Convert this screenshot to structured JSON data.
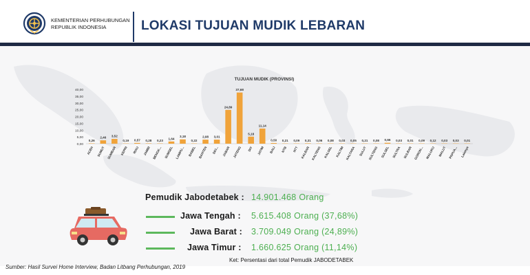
{
  "header": {
    "org_line1": "KEMENTERIAN PERHUBUNGAN",
    "org_line2": "REPUBLIK INDONESIA",
    "title": "LOKASI TUJUAN MUDIK LEBARAN"
  },
  "colors": {
    "bar": "#f0a33a",
    "title": "#1f3a68",
    "accent_green": "#4caf50",
    "car": "#e66a62"
  },
  "chart_data": {
    "type": "bar",
    "title": "TUJUAN MUDIK (PROVINSI)",
    "categories": [
      "ACEH",
      "SUMUT",
      "SUMBAR",
      "KEPRI",
      "RIAU",
      "JAMBI",
      "BENGK...",
      "SUMSEL",
      "LAMPU...",
      "BABEL",
      "BANTEN",
      "DKI...",
      "JABAR",
      "JATENG",
      "DIY",
      "JATIM",
      "BALI",
      "NTB",
      "NTT",
      "KALBAR",
      "KALTENG",
      "KALSEL",
      "KALTIM",
      "KALTARA",
      "SULUT",
      "SULTENG",
      "SULSEL",
      "SULTRA",
      "SULBAR",
      "GORON...",
      "MALUKU",
      "MALUT",
      "PAPUA...",
      "Lainnya"
    ],
    "values": [
      0.26,
      2.46,
      3.52,
      0.19,
      0.57,
      0.28,
      0.23,
      1.64,
      3.18,
      0.22,
      2.98,
      3.01,
      24.89,
      37.68,
      5.18,
      11.14,
      0.5,
      0.21,
      0.09,
      0.31,
      0.06,
      0.08,
      0.03,
      0.05,
      0.21,
      0.08,
      0.66,
      0.03,
      0.01,
      0.09,
      0.12,
      0.03,
      0.03,
      0.01
    ],
    "value_labels": [
      "0,26",
      "2,46",
      "3,52",
      "0,19",
      "0,57",
      "0,28",
      "0,23",
      "1,64",
      "3,18",
      "0,22",
      "2,98",
      "3,01",
      "24,89",
      "37,68",
      "5,18",
      "11,14",
      "0,50",
      "0,21",
      "0,09",
      "0,31",
      "0,06",
      "0,08",
      "0,03",
      "0,05",
      "0,21",
      "0,08",
      "0,66",
      "0,03",
      "0,01",
      "0,09",
      "0,12",
      "0,03",
      "0,03",
      "0,01"
    ],
    "ylim": [
      0,
      40
    ],
    "yticks": [
      0,
      5,
      10,
      15,
      20,
      25,
      30,
      35,
      40
    ],
    "ytick_labels": [
      "0,00",
      "5,00",
      "10,00",
      "15,00",
      "20,00",
      "25,00",
      "30,00",
      "35,00",
      "40,00"
    ],
    "grid": false,
    "legend": "none"
  },
  "summary": {
    "jabodetabek_label": "Pemudik Jabodetabek :",
    "jabodetabek_value": "14.901.468 Orang",
    "rows": [
      {
        "label": "Jawa Tengah :",
        "value": "5.615.408 Orang (37,68%)"
      },
      {
        "label": "Jawa Barat :",
        "value": "3.709.049 Orang (24,89%)"
      },
      {
        "label": "Jawa Timur :",
        "value": "1.660.625 Orang (11,14%)"
      }
    ]
  },
  "note": "Ket: Persentasi dari total Pemudik JABODETABEK",
  "source": "Sumber: Hasil Survei Home Interview, Badan Litbang Perhubungan, 2019"
}
